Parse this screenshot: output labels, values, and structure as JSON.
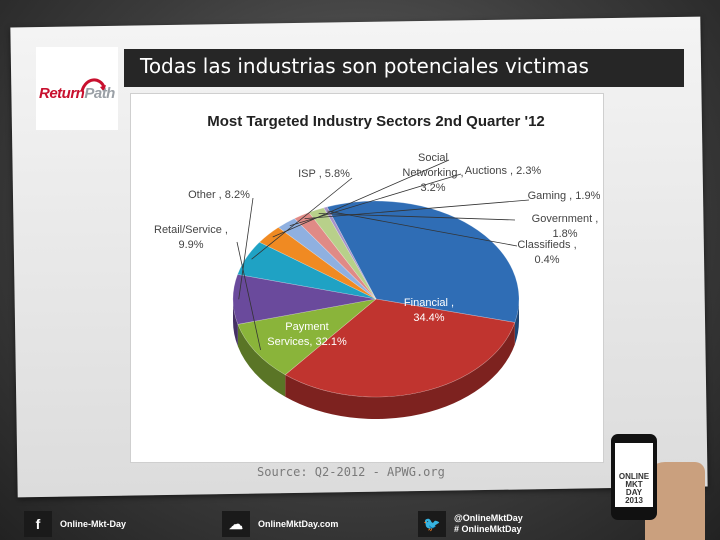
{
  "slide": {
    "title": "Todas las industrias son potenciales victimas",
    "source": "Source: Q2-2012 - APWG.org"
  },
  "logo": {
    "part1": "Return",
    "part2": "Path"
  },
  "chart_data": {
    "type": "pie",
    "title": "Most Targeted Industry Sectors 2nd Quarter '12",
    "slices": [
      {
        "name": "Financial",
        "value": 34.4,
        "color": "#2f6db5",
        "label_lines": [
          "Financial ,",
          "34.4%"
        ]
      },
      {
        "name": "Payment Services",
        "value": 32.1,
        "color": "#c0342f",
        "label_lines": [
          "Payment",
          "Services, 32.1%"
        ]
      },
      {
        "name": "Retail/Service",
        "value": 9.9,
        "color": "#8ab43a",
        "label_lines": [
          "Retail/Service ,",
          "9.9%"
        ]
      },
      {
        "name": "Other",
        "value": 8.2,
        "color": "#6a4a9c",
        "label_lines": [
          "Other , 8.2%"
        ]
      },
      {
        "name": "ISP",
        "value": 5.8,
        "color": "#1fa2c4",
        "label_lines": [
          "ISP , 5.8%"
        ]
      },
      {
        "name": "Social Networking",
        "value": 3.2,
        "color": "#f08a22",
        "label_lines": [
          "Social",
          "Networking ,",
          "3.2%"
        ]
      },
      {
        "name": "Auctions",
        "value": 2.3,
        "color": "#8fb0e0",
        "label_lines": [
          "Auctions , 2.3%"
        ]
      },
      {
        "name": "Gaming",
        "value": 1.9,
        "color": "#e08a86",
        "label_lines": [
          "Gaming , 1.9%"
        ]
      },
      {
        "name": "Government",
        "value": 1.8,
        "color": "#b8d08a",
        "label_lines": [
          "Government ,",
          "1.8%"
        ]
      },
      {
        "name": "Classifieds",
        "value": 0.4,
        "color": "#a894c8",
        "label_lines": [
          "Classifieds ,",
          "0.4%"
        ]
      }
    ]
  },
  "phone": {
    "brand": "ONLINE MKT DAY 2013"
  },
  "footer": {
    "facebook": "Online-Mkt-Day",
    "cloud": "OnlineMktDay.com",
    "twitter_handle": "@OnlineMktDay",
    "twitter_hashtag": "# OnlineMktDay"
  }
}
